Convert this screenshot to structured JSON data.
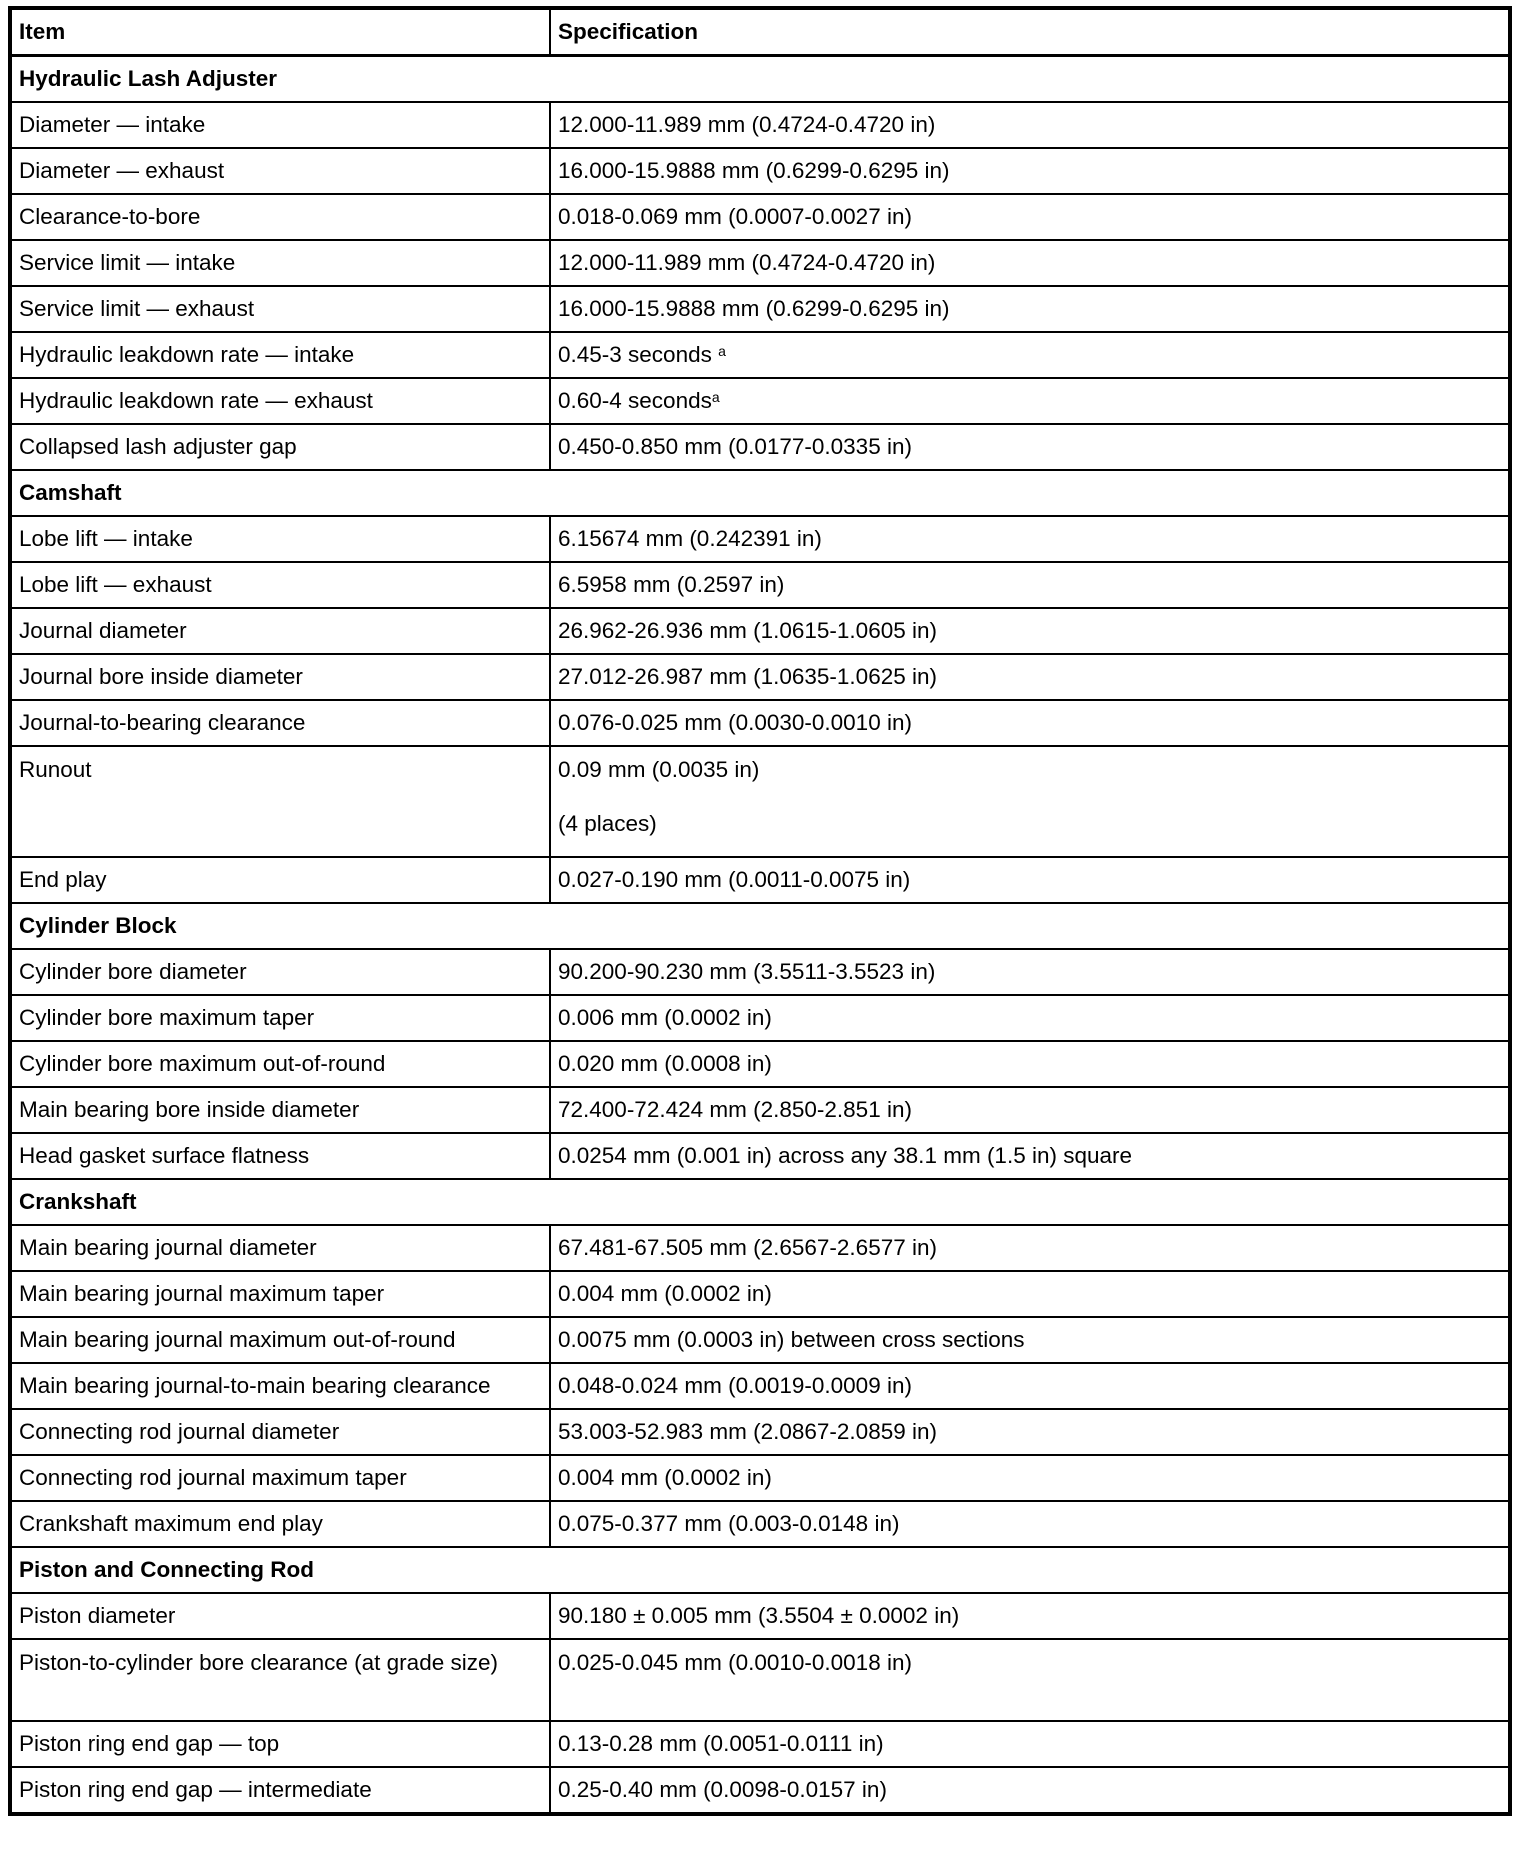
{
  "header": {
    "item": "Item",
    "specification": "Specification"
  },
  "sections": [
    {
      "title": "Hydraulic Lash Adjuster",
      "rows": [
        {
          "item": "Diameter — intake",
          "spec": "12.000-11.989 mm (0.4724-0.4720 in)"
        },
        {
          "item": "Diameter — exhaust",
          "spec": "16.000-15.9888 mm (0.6299-0.6295 in)"
        },
        {
          "item": "Clearance-to-bore",
          "spec": "0.018-0.069 mm (0.0007-0.0027 in)"
        },
        {
          "item": "Service limit — intake",
          "spec": "12.000-11.989 mm (0.4724-0.4720 in)"
        },
        {
          "item": "Service limit — exhaust",
          "spec": "16.000-15.9888 mm (0.6299-0.6295 in)"
        },
        {
          "item": "Hydraulic leakdown rate — intake",
          "spec": "0.45-3 seconds ",
          "footnote": "a"
        },
        {
          "item": "Hydraulic leakdown rate — exhaust",
          "spec": "0.60-4 seconds",
          "footnote": "a"
        },
        {
          "item": "Collapsed lash adjuster gap",
          "spec": "0.450-0.850 mm (0.0177-0.0335 in)"
        }
      ]
    },
    {
      "title": "Camshaft",
      "rows": [
        {
          "item": "Lobe lift — intake",
          "spec": "6.15674 mm (0.242391 in)"
        },
        {
          "item": "Lobe lift — exhaust",
          "spec": "6.5958 mm (0.2597 in)"
        },
        {
          "item": "Journal diameter",
          "spec": "26.962-26.936 mm (1.0615-1.0605 in)"
        },
        {
          "item": "Journal bore inside diameter",
          "spec": "27.012-26.987 mm (1.0635-1.0625 in)"
        },
        {
          "item": "Journal-to-bearing clearance",
          "spec": "0.076-0.025 mm (0.0030-0.0010 in)"
        },
        {
          "item": "Runout",
          "spec": "0.09 mm (0.0035 in)",
          "note": "(4 places)"
        },
        {
          "item": "End play",
          "spec": "0.027-0.190 mm (0.0011-0.0075 in)"
        }
      ]
    },
    {
      "title": "Cylinder Block",
      "rows": [
        {
          "item": "Cylinder bore diameter",
          "spec": "90.200-90.230 mm (3.5511-3.5523 in)"
        },
        {
          "item": "Cylinder bore maximum taper",
          "spec": "0.006 mm (0.0002 in)"
        },
        {
          "item": "Cylinder bore maximum out-of-round",
          "spec": "0.020 mm (0.0008 in)"
        },
        {
          "item": "Main bearing bore inside diameter",
          "spec": "72.400-72.424 mm (2.850-2.851 in)"
        },
        {
          "item": "Head gasket surface flatness",
          "spec": "0.0254 mm (0.001 in) across any 38.1 mm (1.5 in) square"
        }
      ]
    },
    {
      "title": "Crankshaft",
      "rows": [
        {
          "item": "Main bearing journal diameter",
          "spec": "67.481-67.505 mm (2.6567-2.6577 in)"
        },
        {
          "item": "Main bearing journal maximum taper",
          "spec": "0.004 mm (0.0002 in)"
        },
        {
          "item": "Main bearing journal maximum out-of-round",
          "spec": "0.0075 mm (0.0003 in) between cross sections"
        },
        {
          "item": "Main bearing journal-to-main bearing clearance",
          "spec": "0.048-0.024 mm (0.0019-0.0009 in)"
        },
        {
          "item": "Connecting rod journal diameter",
          "spec": "53.003-52.983 mm (2.0867-2.0859 in)"
        },
        {
          "item": "Connecting rod journal maximum taper",
          "spec": "0.004 mm (0.0002 in)"
        },
        {
          "item": "Crankshaft maximum end play",
          "spec": "0.075-0.377 mm (0.003-0.0148 in)"
        }
      ]
    },
    {
      "title": "Piston and Connecting Rod",
      "rows": [
        {
          "item": "Piston diameter",
          "spec": "90.180 ± 0.005 mm (3.5504 ± 0.0002 in)"
        },
        {
          "item": "Piston-to-cylinder bore clearance (at grade size)",
          "spec": "0.025-0.045 mm (0.0010-0.0018 in)"
        },
        {
          "item": "Piston ring end gap — top",
          "spec": "0.13-0.28 mm (0.0051-0.0111 in)"
        },
        {
          "item": "Piston ring end gap — intermediate",
          "spec": "0.25-0.40 mm (0.0098-0.0157 in)"
        }
      ]
    }
  ]
}
